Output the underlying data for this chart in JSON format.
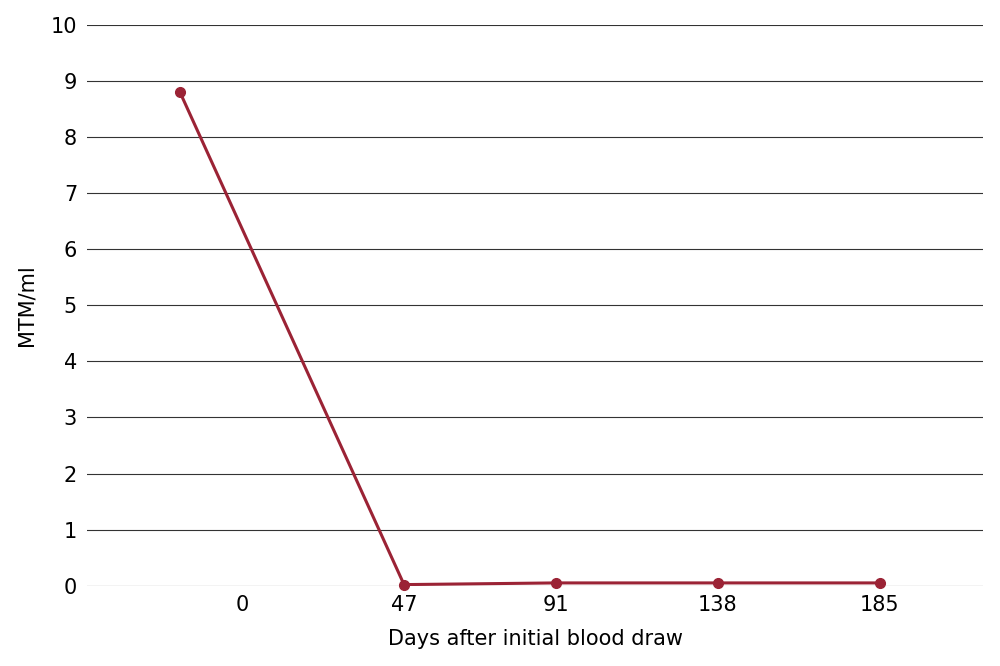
{
  "x_line": [
    -18,
    47,
    91,
    138,
    185
  ],
  "y_line": [
    8.8,
    0.02,
    0.05,
    0.05,
    0.05
  ],
  "x_markers": [
    -18,
    47,
    91,
    138,
    185
  ],
  "y_markers": [
    8.8,
    0.02,
    0.05,
    0.05,
    0.05
  ],
  "xticks": [
    0,
    47,
    91,
    138,
    185
  ],
  "yticks": [
    0,
    1,
    2,
    3,
    4,
    5,
    6,
    7,
    8,
    9,
    10
  ],
  "xlim": [
    -45,
    215
  ],
  "ylim": [
    -0.1,
    10.2
  ],
  "ylim_plot": [
    0,
    10
  ],
  "xlabel": "Days after initial blood draw",
  "ylabel": "MTM/ml",
  "line_color": "#9b2335",
  "marker_color": "#9b2335",
  "marker_size": 7,
  "linewidth": 2.2,
  "background_color": "#ffffff",
  "grid_color": "#333333",
  "grid_linewidth": 0.8,
  "xlabel_fontsize": 15,
  "ylabel_fontsize": 15,
  "tick_fontsize": 15,
  "figure_width": 10.0,
  "figure_height": 6.66,
  "dpi": 100
}
